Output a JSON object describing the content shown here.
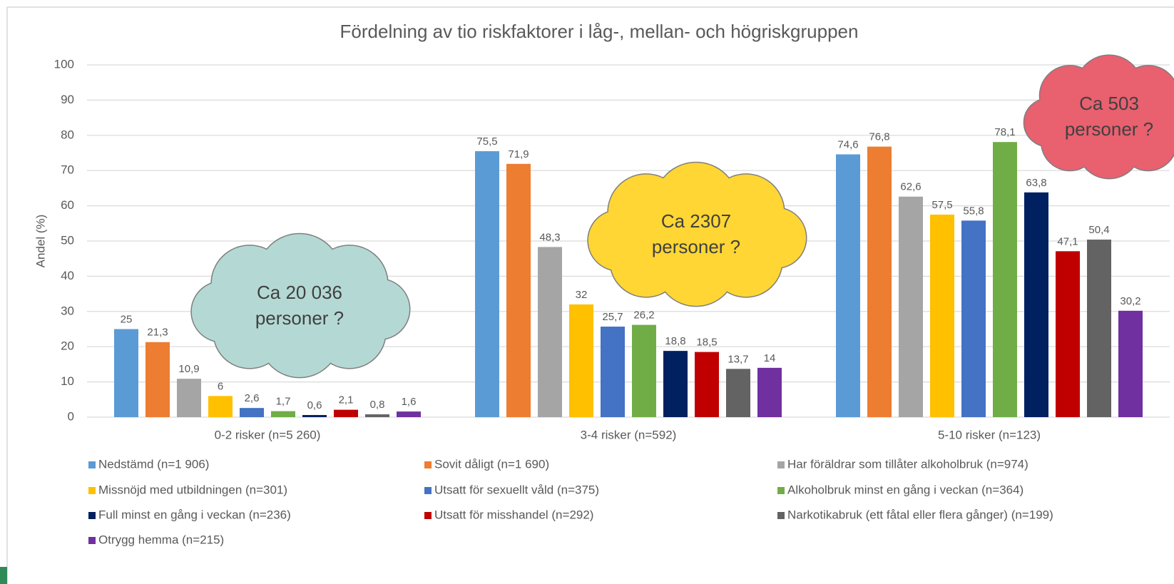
{
  "chart_data": {
    "type": "bar",
    "title": "Fördelning av tio riskfaktorer i låg-, mellan- och högriskgruppen",
    "y_label": "Andel (%)",
    "categories": [
      "0-2 risker (n=5 260)",
      "3-4 risker (n=592)",
      "5-10 risker (n=123)"
    ],
    "ylim": [
      0,
      100
    ],
    "yticks": [
      0,
      10,
      20,
      30,
      40,
      50,
      60,
      70,
      80,
      90,
      100
    ],
    "grid": true,
    "legend": "bottom",
    "series": [
      {
        "name": "Nedstämd (n=1 906)",
        "color": "#5b9bd5",
        "values": [
          25,
          75.5,
          74.6
        ],
        "value_labels": [
          "25",
          "75,5",
          "74,6"
        ]
      },
      {
        "name": "Sovit dåligt (n=1 690)",
        "color": "#ed7d31",
        "values": [
          21.3,
          71.9,
          76.8
        ],
        "value_labels": [
          "21,3",
          "71,9",
          "76,8"
        ]
      },
      {
        "name": "Har föräldrar som tillåter alkoholbruk (n=974)",
        "color": "#a5a5a5",
        "values": [
          10.9,
          48.3,
          62.6
        ],
        "value_labels": [
          "10,9",
          "48,3",
          "62,6"
        ]
      },
      {
        "name": "Missnöjd med utbildningen (n=301)",
        "color": "#ffc000",
        "values": [
          6,
          32,
          57.5
        ],
        "value_labels": [
          "6",
          "32",
          "57,5"
        ]
      },
      {
        "name": "Utsatt för sexuellt våld (n=375)",
        "color": "#4472c4",
        "values": [
          2.6,
          25.7,
          55.8
        ],
        "value_labels": [
          "2,6",
          "25,7",
          "55,8"
        ]
      },
      {
        "name": "Alkoholbruk minst en gång i veckan (n=364)",
        "color": "#70ad47",
        "values": [
          1.7,
          26.2,
          78.1
        ],
        "value_labels": [
          "1,7",
          "26,2",
          "78,1"
        ]
      },
      {
        "name": "Full minst en gång i veckan (n=236)",
        "color": "#002060",
        "values": [
          0.6,
          18.8,
          63.8
        ],
        "value_labels": [
          "0,6",
          "18,8",
          "63,8"
        ]
      },
      {
        "name": "Utsatt för misshandel (n=292)",
        "color": "#c00000",
        "values": [
          2.1,
          18.5,
          47.1
        ],
        "value_labels": [
          "2,1",
          "18,5",
          "47,1"
        ]
      },
      {
        "name": "Narkotikabruk (ett fåtal eller flera gånger) (n=199)",
        "color": "#636363",
        "values": [
          0.8,
          13.7,
          50.4
        ],
        "value_labels": [
          "0,8",
          "13,7",
          "50,4"
        ]
      },
      {
        "name": "Otrygg hemma (n=215)",
        "color": "#7030a0",
        "values": [
          1.6,
          14,
          30.2
        ],
        "value_labels": [
          "1,6",
          "14",
          "30,2"
        ]
      }
    ],
    "annotations": [
      {
        "lines": [
          "Ca 20 036",
          "personer ?"
        ],
        "color": "#b4d9d4"
      },
      {
        "lines": [
          "Ca 2307",
          "personer ?"
        ],
        "color": "#ffd633"
      },
      {
        "lines": [
          "Ca 503",
          "personer ?"
        ],
        "color": "#e9606f"
      }
    ]
  }
}
